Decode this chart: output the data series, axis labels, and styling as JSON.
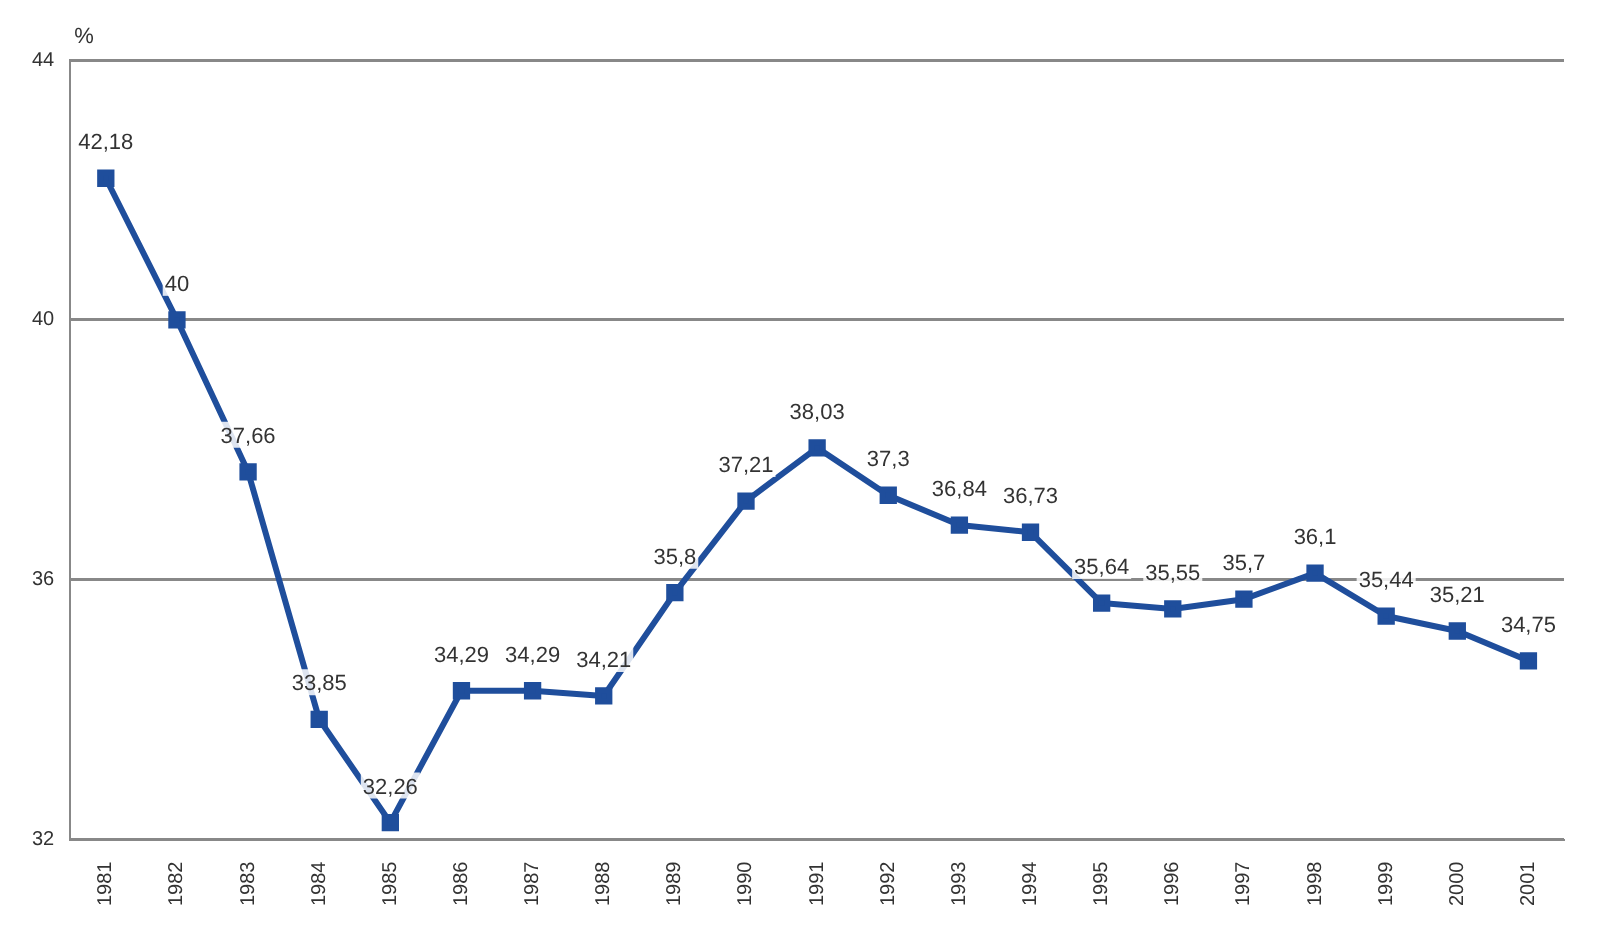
{
  "chart_data": {
    "type": "line",
    "ylabel": "%",
    "categories": [
      "1981",
      "1982",
      "1983",
      "1984",
      "1985",
      "1986",
      "1987",
      "1988",
      "1989",
      "1990",
      "1991",
      "1992",
      "1993",
      "1994",
      "1995",
      "1996",
      "1997",
      "1998",
      "1999",
      "2000",
      "2001"
    ],
    "series": [
      {
        "color": "#1f4e9c",
        "values": [
          42.18,
          40,
          37.66,
          33.85,
          32.26,
          34.29,
          34.29,
          34.21,
          35.8,
          37.21,
          38.03,
          37.3,
          36.84,
          36.73,
          35.64,
          35.55,
          35.7,
          36.1,
          35.44,
          35.21,
          34.75
        ],
        "value_labels": [
          "42,18",
          "40",
          "37,66",
          "33,85",
          "32,26",
          "34,29",
          "34,29",
          "34,21",
          "35,8",
          "37,21",
          "38,03",
          "37,3",
          "36,84",
          "36,73",
          "35,64",
          "35,55",
          "35,7",
          "36,1",
          "35,44",
          "35,21",
          "34,75"
        ]
      }
    ],
    "ylim": [
      32,
      44
    ],
    "yticks": [
      32,
      36,
      40,
      44
    ],
    "grid": "y",
    "legend": false,
    "marker": "square",
    "line_style": "solid"
  }
}
